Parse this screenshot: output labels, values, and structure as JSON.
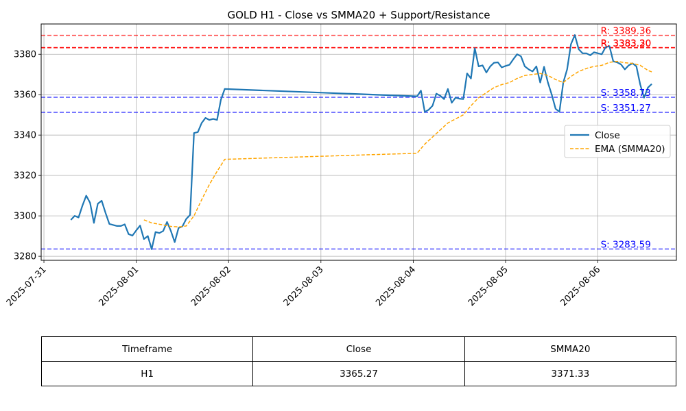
{
  "chart_data": {
    "type": "line",
    "title": "GOLD H1 - Close vs SMMA20 + Support/Resistance",
    "xlabel": "",
    "ylabel": "",
    "x_ticks": [
      "2025-07-31",
      "2025-08-01",
      "2025-08-02",
      "2025-08-03",
      "2025-08-04",
      "2025-08-05",
      "2025-08-06"
    ],
    "y_ticks": [
      3280,
      3300,
      3320,
      3340,
      3360,
      3380
    ],
    "ylim": [
      3278,
      3395
    ],
    "grid": true,
    "legend": "center-right",
    "series": [
      {
        "name": "Close",
        "color": "#1f77b4",
        "style": "solid",
        "points": [
          [
            "2025-07-31 07:00",
            3298.0
          ],
          [
            "2025-07-31 08:00",
            3300.0
          ],
          [
            "2025-07-31 09:00",
            3299.2
          ],
          [
            "2025-07-31 10:00",
            3305.0
          ],
          [
            "2025-07-31 11:00",
            3310.0
          ],
          [
            "2025-07-31 12:00",
            3306.5
          ],
          [
            "2025-07-31 13:00",
            3296.5
          ],
          [
            "2025-07-31 14:00",
            3306.0
          ],
          [
            "2025-07-31 15:00",
            3307.5
          ],
          [
            "2025-07-31 16:00",
            3301.5
          ],
          [
            "2025-07-31 17:00",
            3296.0
          ],
          [
            "2025-07-31 18:00",
            3295.5
          ],
          [
            "2025-07-31 19:00",
            3295.0
          ],
          [
            "2025-07-31 20:00",
            3295.0
          ],
          [
            "2025-07-31 21:00",
            3295.8
          ],
          [
            "2025-07-31 22:00",
            3291.0
          ],
          [
            "2025-07-31 23:00",
            3290.2
          ],
          [
            "2025-08-01 00:00",
            3292.8
          ],
          [
            "2025-08-01 01:00",
            3295.2
          ],
          [
            "2025-08-01 02:00",
            3288.5
          ],
          [
            "2025-08-01 03:00",
            3290.0
          ],
          [
            "2025-08-01 04:00",
            3283.5
          ],
          [
            "2025-08-01 05:00",
            3292.0
          ],
          [
            "2025-08-01 06:00",
            3291.5
          ],
          [
            "2025-08-01 07:00",
            3292.5
          ],
          [
            "2025-08-01 08:00",
            3297.0
          ],
          [
            "2025-08-01 09:00",
            3292.5
          ],
          [
            "2025-08-01 10:00",
            3287.0
          ],
          [
            "2025-08-01 11:00",
            3294.0
          ],
          [
            "2025-08-01 12:00",
            3294.8
          ],
          [
            "2025-08-01 13:00",
            3298.5
          ],
          [
            "2025-08-01 14:00",
            3300.5
          ],
          [
            "2025-08-01 15:00",
            3341.0
          ],
          [
            "2025-08-01 16:00",
            3341.5
          ],
          [
            "2025-08-01 17:00",
            3346.0
          ],
          [
            "2025-08-01 18:00",
            3348.5
          ],
          [
            "2025-08-01 19:00",
            3347.5
          ],
          [
            "2025-08-01 20:00",
            3348.0
          ],
          [
            "2025-08-01 21:00",
            3347.5
          ],
          [
            "2025-08-01 22:00",
            3357.5
          ],
          [
            "2025-08-01 23:00",
            3362.8
          ],
          [
            "2025-08-04 01:00",
            3359.2
          ],
          [
            "2025-08-04 02:00",
            3362.0
          ],
          [
            "2025-08-04 03:00",
            3351.5
          ],
          [
            "2025-08-04 04:00",
            3352.5
          ],
          [
            "2025-08-04 05:00",
            3354.5
          ],
          [
            "2025-08-04 06:00",
            3360.5
          ],
          [
            "2025-08-04 07:00",
            3359.5
          ],
          [
            "2025-08-04 08:00",
            3357.8
          ],
          [
            "2025-08-04 09:00",
            3362.8
          ],
          [
            "2025-08-04 10:00",
            3356.0
          ],
          [
            "2025-08-04 11:00",
            3358.5
          ],
          [
            "2025-08-04 12:00",
            3358.0
          ],
          [
            "2025-08-04 13:00",
            3357.8
          ],
          [
            "2025-08-04 14:00",
            3370.5
          ],
          [
            "2025-08-04 15:00",
            3368.0
          ],
          [
            "2025-08-04 16:00",
            3383.0
          ],
          [
            "2025-08-04 17:00",
            3374.0
          ],
          [
            "2025-08-04 18:00",
            3374.5
          ],
          [
            "2025-08-04 19:00",
            3371.0
          ],
          [
            "2025-08-04 20:00",
            3374.0
          ],
          [
            "2025-08-04 21:00",
            3375.8
          ],
          [
            "2025-08-04 22:00",
            3376.0
          ],
          [
            "2025-08-04 23:00",
            3373.5
          ],
          [
            "2025-08-05 00:00",
            3374.2
          ],
          [
            "2025-08-05 01:00",
            3374.8
          ],
          [
            "2025-08-05 02:00",
            3377.5
          ],
          [
            "2025-08-05 03:00",
            3380.0
          ],
          [
            "2025-08-05 04:00",
            3379.0
          ],
          [
            "2025-08-05 05:00",
            3374.0
          ],
          [
            "2025-08-05 06:00",
            3372.5
          ],
          [
            "2025-08-05 07:00",
            3371.5
          ],
          [
            "2025-08-05 08:00",
            3374.0
          ],
          [
            "2025-08-05 09:00",
            3366.0
          ],
          [
            "2025-08-05 10:00",
            3373.8
          ],
          [
            "2025-08-05 11:00",
            3366.0
          ],
          [
            "2025-08-05 12:00",
            3360.0
          ],
          [
            "2025-08-05 13:00",
            3353.0
          ],
          [
            "2025-08-05 14:00",
            3351.5
          ],
          [
            "2025-08-05 15:00",
            3366.0
          ],
          [
            "2025-08-05 16:00",
            3372.5
          ],
          [
            "2025-08-05 17:00",
            3385.0
          ],
          [
            "2025-08-05 18:00",
            3389.5
          ],
          [
            "2025-08-05 19:00",
            3382.5
          ],
          [
            "2025-08-05 20:00",
            3380.5
          ],
          [
            "2025-08-05 21:00",
            3380.5
          ],
          [
            "2025-08-05 22:00",
            3379.5
          ],
          [
            "2025-08-05 23:00",
            3381.0
          ],
          [
            "2025-08-06 00:00",
            3380.5
          ],
          [
            "2025-08-06 01:00",
            3380.0
          ],
          [
            "2025-08-06 02:00",
            3383.5
          ],
          [
            "2025-08-06 03:00",
            3384.0
          ],
          [
            "2025-08-06 04:00",
            3376.5
          ],
          [
            "2025-08-06 05:00",
            3376.0
          ],
          [
            "2025-08-06 06:00",
            3375.0
          ],
          [
            "2025-08-06 07:00",
            3372.5
          ],
          [
            "2025-08-06 08:00",
            3374.5
          ],
          [
            "2025-08-06 09:00",
            3375.5
          ],
          [
            "2025-08-06 10:00",
            3374.0
          ],
          [
            "2025-08-06 11:00",
            3365.0
          ],
          [
            "2025-08-06 12:00",
            3358.5
          ],
          [
            "2025-08-06 13:00",
            3363.5
          ],
          [
            "2025-08-06 14:00",
            3365.3
          ]
        ]
      },
      {
        "name": "EMA (SMMA20)",
        "color": "#ffa500",
        "style": "dashed",
        "points": [
          [
            "2025-08-01 02:00",
            3298.0
          ],
          [
            "2025-08-01 04:00",
            3296.5
          ],
          [
            "2025-08-01 07:00",
            3295.5
          ],
          [
            "2025-08-01 09:00",
            3294.8
          ],
          [
            "2025-08-01 11:00",
            3294.5
          ],
          [
            "2025-08-01 13:00",
            3295.0
          ],
          [
            "2025-08-01 15:00",
            3300.0
          ],
          [
            "2025-08-01 17:00",
            3308.0
          ],
          [
            "2025-08-01 19:00",
            3315.5
          ],
          [
            "2025-08-01 21:00",
            3322.0
          ],
          [
            "2025-08-01 23:00",
            3328.0
          ],
          [
            "2025-08-04 01:00",
            3331.0
          ],
          [
            "2025-08-04 03:00",
            3335.5
          ],
          [
            "2025-08-04 05:00",
            3339.0
          ],
          [
            "2025-08-04 07:00",
            3342.5
          ],
          [
            "2025-08-04 09:00",
            3346.0
          ],
          [
            "2025-08-04 11:00",
            3348.0
          ],
          [
            "2025-08-04 13:00",
            3350.0
          ],
          [
            "2025-08-04 15:00",
            3354.5
          ],
          [
            "2025-08-04 17:00",
            3358.5
          ],
          [
            "2025-08-04 19:00",
            3361.0
          ],
          [
            "2025-08-04 21:00",
            3363.5
          ],
          [
            "2025-08-04 23:00",
            3365.0
          ],
          [
            "2025-08-05 01:00",
            3366.0
          ],
          [
            "2025-08-05 03:00",
            3368.0
          ],
          [
            "2025-08-05 05:00",
            3369.5
          ],
          [
            "2025-08-05 07:00",
            3370.0
          ],
          [
            "2025-08-05 09:00",
            3370.5
          ],
          [
            "2025-08-05 11:00",
            3369.5
          ],
          [
            "2025-08-05 13:00",
            3367.5
          ],
          [
            "2025-08-05 15:00",
            3366.0
          ],
          [
            "2025-08-05 17:00",
            3369.0
          ],
          [
            "2025-08-05 19:00",
            3371.5
          ],
          [
            "2025-08-05 21:00",
            3373.0
          ],
          [
            "2025-08-05 23:00",
            3374.0
          ],
          [
            "2025-08-06 01:00",
            3374.5
          ],
          [
            "2025-08-06 03:00",
            3376.0
          ],
          [
            "2025-08-06 05:00",
            3376.5
          ],
          [
            "2025-08-06 07:00",
            3375.8
          ],
          [
            "2025-08-06 09:00",
            3375.5
          ],
          [
            "2025-08-06 11:00",
            3374.5
          ],
          [
            "2025-08-06 13:00",
            3372.0
          ],
          [
            "2025-08-06 14:00",
            3371.3
          ]
        ]
      }
    ],
    "levels": [
      {
        "type": "resistance",
        "value": 3389.36,
        "label": "R: 3389.36",
        "color": "#ff0000",
        "alpha": 0.7
      },
      {
        "type": "resistance",
        "value": 3383.3,
        "label": "R: 3383.30",
        "color": "#ff0000",
        "alpha": 1.0
      },
      {
        "type": "resistance",
        "value": 3383.2,
        "label": "R: 3383.20",
        "color": "#ff0000",
        "alpha": 0.7
      },
      {
        "type": "support",
        "value": 3358.73,
        "label": "S: 3358.73",
        "color": "#0000ff",
        "alpha": 0.7
      },
      {
        "type": "support",
        "value": 3351.27,
        "label": "S: 3351.27",
        "color": "#0000ff",
        "alpha": 0.7
      },
      {
        "type": "support",
        "value": 3283.59,
        "label": "S: 3283.59",
        "color": "#0000ff",
        "alpha": 0.7
      }
    ]
  },
  "table": {
    "headers": [
      "Timeframe",
      "Close",
      "SMMA20"
    ],
    "rows": [
      [
        "H1",
        "3365.27",
        "3371.33"
      ]
    ]
  }
}
